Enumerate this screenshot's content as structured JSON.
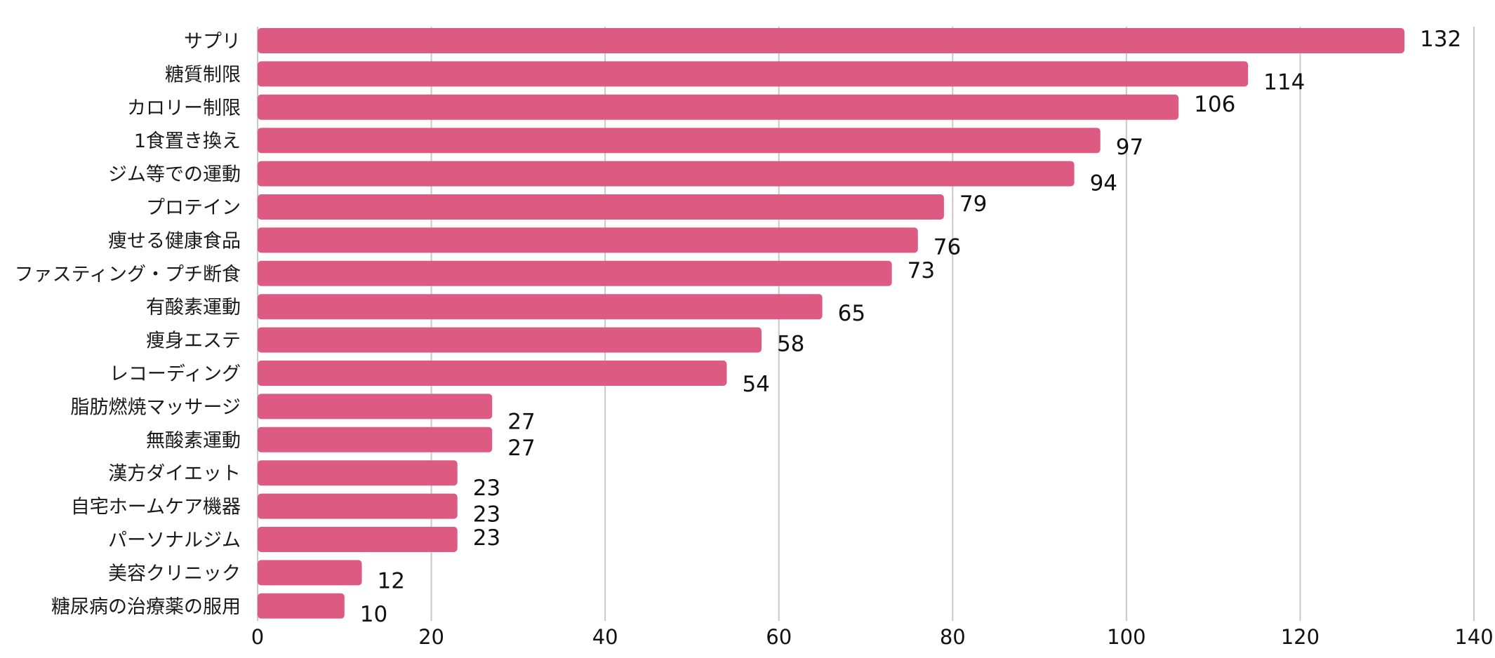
{
  "chart_data": {
    "type": "bar",
    "orientation": "horizontal",
    "title": "",
    "xlabel": "",
    "ylabel": "",
    "xlim": [
      0,
      140
    ],
    "x_ticks": [
      0,
      20,
      40,
      60,
      80,
      100,
      120,
      140
    ],
    "grid": true,
    "legend": "none",
    "bar_color": "#dd5a83",
    "grid_color": "#c8c8c8",
    "categories": [
      "サプリ",
      "糖質制限",
      "カロリー制限",
      "1食置き換え",
      "ジム等での運動",
      "プロテイン",
      "痩せる健康食品",
      "ファスティング・プチ断食",
      "有酸素運動",
      "痩身エステ",
      "レコーディング",
      "脂肪燃焼マッサージ",
      "無酸素運動",
      "漢方ダイエット",
      "自宅ホームケア機器",
      "パーソナルジム",
      "美容クリニック",
      "糖尿病の治療薬の服用"
    ],
    "values": [
      132,
      114,
      106,
      97,
      94,
      79,
      76,
      73,
      65,
      58,
      54,
      27,
      27,
      23,
      23,
      23,
      12,
      10
    ]
  }
}
